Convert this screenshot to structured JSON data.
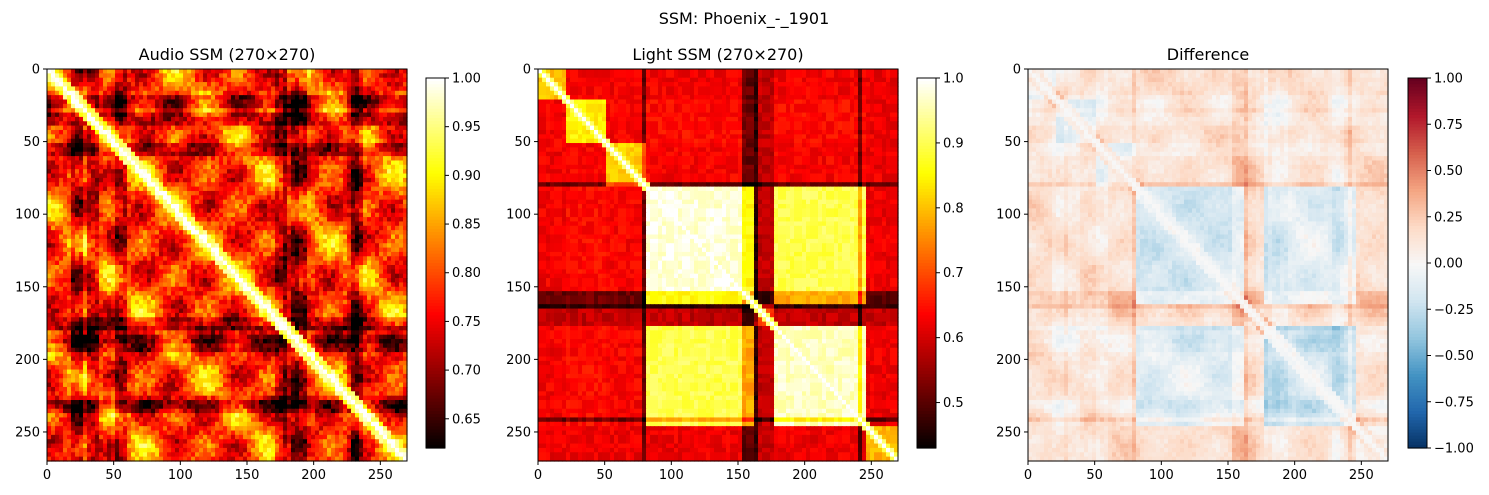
{
  "figure": {
    "suptitle": "SSM: Phoenix_-_1901"
  },
  "chart_data": [
    {
      "type": "heatmap",
      "title": "Audio SSM (270×270)",
      "size": 270,
      "colormap": "hot",
      "xlim": [
        0,
        270
      ],
      "ylim": [
        270,
        0
      ],
      "x_ticks": [
        0,
        50,
        100,
        150,
        200,
        250
      ],
      "y_ticks": [
        0,
        50,
        100,
        150,
        200,
        250
      ],
      "colorbar": {
        "vmin": 0.62,
        "vmax": 1.0,
        "ticks": [
          0.65,
          0.7,
          0.75,
          0.8,
          0.85,
          0.9,
          0.95,
          1.0
        ],
        "tick_labels": [
          "0.65",
          "0.70",
          "0.75",
          "0.80",
          "0.85",
          "0.90",
          "0.95",
          "1.00"
        ]
      },
      "structure": {
        "description_values": "similarity 0.62-1.00, diagonal = 1.00",
        "boundaries": [
          15,
          30,
          45,
          60,
          80,
          100,
          120,
          135,
          150,
          165,
          180,
          195,
          210,
          225,
          240,
          255
        ],
        "dark_rows_cols": [
          20,
          32,
          55,
          175,
          185,
          230
        ],
        "dark_cols": [
          180,
          185,
          228
        ]
      }
    },
    {
      "type": "heatmap",
      "title": "Light SSM (270×270)",
      "size": 270,
      "colormap": "hot",
      "xlim": [
        0,
        270
      ],
      "ylim": [
        270,
        0
      ],
      "x_ticks": [
        0,
        50,
        100,
        150,
        200,
        250
      ],
      "y_ticks": [
        0,
        50,
        100,
        150,
        200,
        250
      ],
      "colorbar": {
        "vmin": 0.43,
        "vmax": 1.0,
        "ticks": [
          0.5,
          0.6,
          0.7,
          0.8,
          0.9,
          1.0
        ],
        "tick_labels": [
          "0.5",
          "0.6",
          "0.7",
          "0.8",
          "0.9",
          "1.0"
        ]
      },
      "structure": {
        "segments": [
          [
            0,
            20
          ],
          [
            20,
            50
          ],
          [
            50,
            80
          ],
          [
            80,
            160
          ],
          [
            160,
            175
          ],
          [
            175,
            245
          ],
          [
            245,
            270
          ]
        ],
        "bright_blocks": [
          [
            80,
            160
          ],
          [
            175,
            245
          ]
        ]
      }
    },
    {
      "type": "heatmap",
      "title": "Difference",
      "size": 270,
      "colormap": "RdBu_r",
      "xlim": [
        0,
        270
      ],
      "ylim": [
        270,
        0
      ],
      "x_ticks": [
        0,
        50,
        100,
        150,
        200,
        250
      ],
      "y_ticks": [
        0,
        50,
        100,
        150,
        200,
        250
      ],
      "colorbar": {
        "vmin": -1.0,
        "vmax": 1.0,
        "ticks": [
          -1.0,
          -0.75,
          -0.5,
          -0.25,
          0.0,
          0.25,
          0.5,
          0.75,
          1.0
        ],
        "tick_labels": [
          "−1.00",
          "−0.75",
          "−0.50",
          "−0.25",
          "0.00",
          "0.25",
          "0.50",
          "0.75",
          "1.00"
        ]
      },
      "structure": {
        "definition": "Audio SSM − Light SSM",
        "range_shown": [
          -0.25,
          0.35
        ]
      }
    }
  ]
}
